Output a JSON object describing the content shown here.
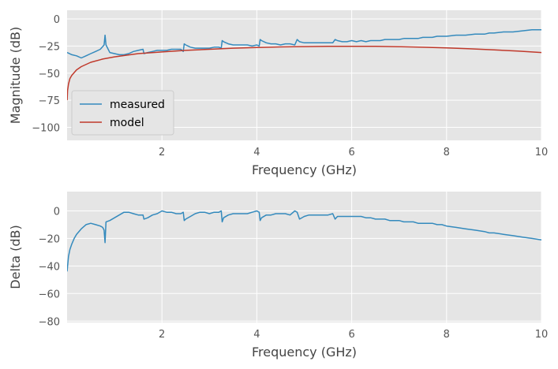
{
  "chart_data": [
    {
      "type": "line",
      "xlabel": "Frequency (GHz)",
      "ylabel": "Magnitude (dB)",
      "xlim": [
        0,
        10
      ],
      "ylim": [
        -112,
        8
      ],
      "xticks": [
        2,
        4,
        6,
        8,
        10
      ],
      "yticks": [
        0,
        -25,
        -50,
        -75,
        -100
      ],
      "xtick_labels": [
        "2",
        "4",
        "6",
        "8",
        "10"
      ],
      "ytick_labels": [
        "0",
        "−25",
        "−50",
        "−75",
        "−100"
      ],
      "grid": true,
      "legend_position": "lower-left",
      "series": [
        {
          "name": "measured",
          "color": "#348abd",
          "x": [
            0.0,
            0.1,
            0.2,
            0.3,
            0.4,
            0.5,
            0.6,
            0.7,
            0.78,
            0.8,
            0.82,
            0.9,
            1.0,
            1.1,
            1.2,
            1.3,
            1.4,
            1.5,
            1.6,
            1.62,
            1.7,
            1.8,
            1.9,
            2.0,
            2.1,
            2.2,
            2.3,
            2.4,
            2.45,
            2.47,
            2.5,
            2.6,
            2.7,
            2.8,
            2.9,
            3.0,
            3.1,
            3.2,
            3.25,
            3.27,
            3.3,
            3.4,
            3.5,
            3.6,
            3.7,
            3.8,
            3.9,
            4.0,
            4.05,
            4.07,
            4.1,
            4.2,
            4.3,
            4.4,
            4.5,
            4.6,
            4.7,
            4.8,
            4.85,
            4.9,
            5.0,
            5.1,
            5.2,
            5.3,
            5.4,
            5.5,
            5.6,
            5.65,
            5.7,
            5.8,
            5.9,
            6.0,
            6.1,
            6.2,
            6.3,
            6.4,
            6.5,
            6.6,
            6.7,
            6.8,
            6.9,
            7.0,
            7.1,
            7.2,
            7.3,
            7.4,
            7.5,
            7.6,
            7.7,
            7.8,
            7.9,
            8.0,
            8.2,
            8.4,
            8.6,
            8.8,
            8.9,
            9.0,
            9.2,
            9.4,
            9.6,
            9.8,
            10.0
          ],
          "y": [
            -31,
            -33,
            -34,
            -36,
            -34,
            -32,
            -30,
            -28,
            -24,
            -15,
            -24,
            -31,
            -32,
            -33,
            -33,
            -32,
            -30,
            -29,
            -28,
            -32,
            -31,
            -30,
            -29,
            -29,
            -29,
            -28,
            -28,
            -28,
            -30,
            -23,
            -24,
            -26,
            -27,
            -27,
            -27,
            -27,
            -26,
            -26,
            -27,
            -20,
            -21,
            -23,
            -24,
            -24,
            -24,
            -24,
            -25,
            -24,
            -25,
            -19,
            -20,
            -22,
            -23,
            -23,
            -24,
            -23,
            -23,
            -24,
            -19,
            -21,
            -22,
            -22,
            -22,
            -22,
            -22,
            -22,
            -22,
            -19,
            -20,
            -21,
            -21,
            -20,
            -21,
            -20,
            -21,
            -20,
            -20,
            -20,
            -19,
            -19,
            -19,
            -19,
            -18,
            -18,
            -18,
            -18,
            -17,
            -17,
            -17,
            -16,
            -16,
            -16,
            -15,
            -15,
            -14,
            -14,
            -13,
            -13,
            -12,
            -12,
            -11,
            -10,
            -10
          ]
        },
        {
          "name": "model",
          "color": "#c0392b",
          "x": [
            0.001,
            0.01,
            0.03,
            0.06,
            0.1,
            0.2,
            0.3,
            0.5,
            0.75,
            1.0,
            1.5,
            2.0,
            2.5,
            3.0,
            3.5,
            4.0,
            4.5,
            5.0,
            5.5,
            6.0,
            6.5,
            7.0,
            7.5,
            8.0,
            8.5,
            9.0,
            9.5,
            10.0
          ],
          "y": [
            -75,
            -66,
            -60,
            -55,
            -52,
            -47,
            -44,
            -40,
            -37,
            -35,
            -32,
            -30.5,
            -29,
            -28,
            -27,
            -26.3,
            -25.8,
            -25.5,
            -25.3,
            -25.2,
            -25.3,
            -25.6,
            -26.1,
            -26.8,
            -27.6,
            -28.6,
            -29.7,
            -31
          ]
        }
      ]
    },
    {
      "type": "line",
      "xlabel": "Frequency (GHz)",
      "ylabel": "Delta (dB)",
      "xlim": [
        0,
        10
      ],
      "ylim": [
        -81,
        14
      ],
      "xticks": [
        2,
        4,
        6,
        8,
        10
      ],
      "yticks": [
        0,
        -20,
        -40,
        -60,
        -80
      ],
      "xtick_labels": [
        "2",
        "4",
        "6",
        "8",
        "10"
      ],
      "ytick_labels": [
        "0",
        "−20",
        "−40",
        "−60",
        "−80"
      ],
      "grid": true,
      "series": [
        {
          "color": "#348abd",
          "x": [
            0.0,
            0.03,
            0.06,
            0.1,
            0.15,
            0.2,
            0.3,
            0.4,
            0.5,
            0.6,
            0.7,
            0.75,
            0.78,
            0.8,
            0.82,
            0.9,
            1.0,
            1.1,
            1.2,
            1.3,
            1.4,
            1.5,
            1.6,
            1.62,
            1.7,
            1.8,
            1.9,
            2.0,
            2.1,
            2.2,
            2.3,
            2.4,
            2.45,
            2.47,
            2.5,
            2.6,
            2.7,
            2.8,
            2.9,
            3.0,
            3.1,
            3.2,
            3.25,
            3.27,
            3.3,
            3.4,
            3.5,
            3.6,
            3.7,
            3.8,
            3.9,
            4.0,
            4.05,
            4.07,
            4.1,
            4.2,
            4.3,
            4.4,
            4.5,
            4.6,
            4.7,
            4.8,
            4.85,
            4.9,
            5.0,
            5.1,
            5.2,
            5.3,
            5.4,
            5.5,
            5.6,
            5.65,
            5.7,
            5.8,
            5.9,
            6.0,
            6.1,
            6.2,
            6.3,
            6.4,
            6.5,
            6.6,
            6.7,
            6.8,
            6.9,
            7.0,
            7.1,
            7.2,
            7.3,
            7.4,
            7.5,
            7.6,
            7.7,
            7.8,
            7.9,
            8.0,
            8.2,
            8.4,
            8.6,
            8.8,
            8.9,
            9.0,
            9.2,
            9.4,
            9.6,
            9.8,
            10.0
          ],
          "y": [
            -44,
            -33,
            -28,
            -24,
            -20,
            -17,
            -13,
            -10,
            -9,
            -10,
            -11,
            -12,
            -14,
            -23,
            -8,
            -7,
            -5,
            -3,
            -1,
            -1,
            -2,
            -3,
            -3,
            -6,
            -5,
            -3,
            -2,
            0,
            -1,
            -1,
            -2,
            -2,
            -1,
            -7,
            -6,
            -4,
            -2,
            -1,
            -1,
            -2,
            -1,
            -1,
            0,
            -8,
            -5,
            -3,
            -2,
            -2,
            -2,
            -2,
            -1,
            0,
            -1,
            -7,
            -5,
            -3,
            -3,
            -2,
            -2,
            -2,
            -3,
            0,
            -1,
            -6,
            -4,
            -3,
            -3,
            -3,
            -3,
            -3,
            -2,
            -6,
            -4,
            -4,
            -4,
            -4,
            -4,
            -4,
            -5,
            -5,
            -6,
            -6,
            -6,
            -7,
            -7,
            -7,
            -8,
            -8,
            -8,
            -9,
            -9,
            -9,
            -9,
            -10,
            -10,
            -11,
            -12,
            -13,
            -14,
            -15,
            -16,
            -16,
            -17,
            -18,
            -19,
            -20,
            -21
          ]
        }
      ]
    }
  ]
}
